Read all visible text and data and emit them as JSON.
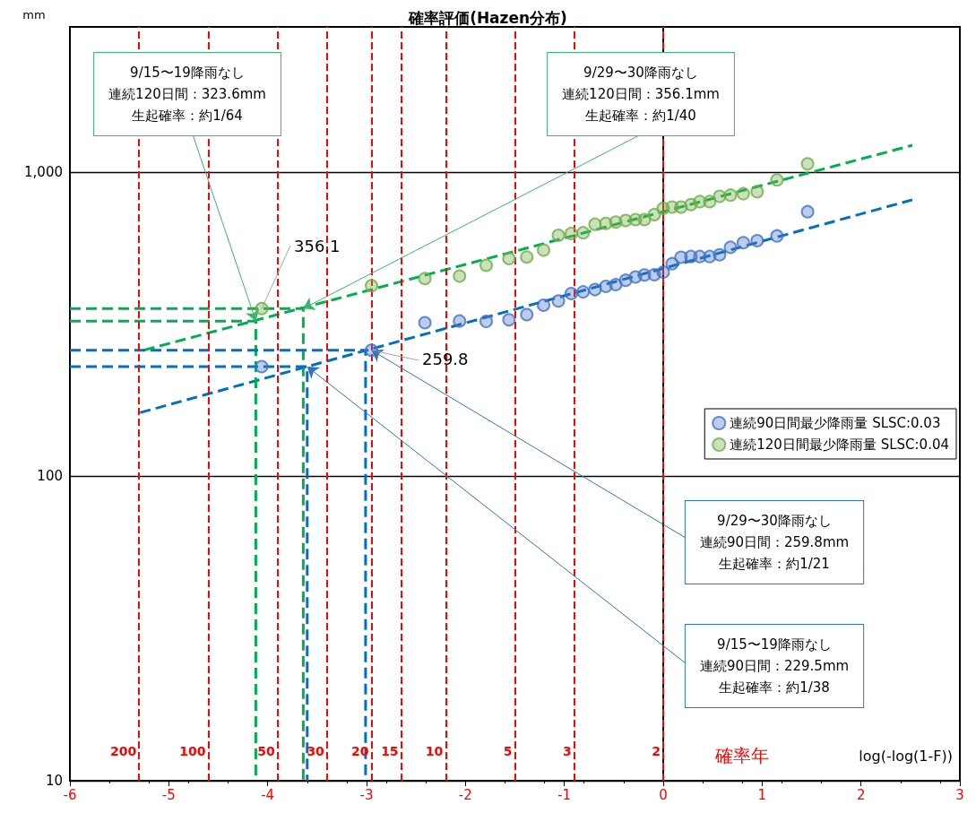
{
  "chart_data": {
    "type": "scatter",
    "title": "確率評価(Hazen分布)",
    "ylabel": "mm",
    "xlabel": "log(-log(1-F))",
    "log": "y",
    "grid": "y",
    "legend": "right",
    "marker": "circle",
    "xlim": [
      -6,
      3
    ],
    "xticks": [
      -6,
      -5,
      -4,
      -3,
      -2,
      -1,
      0,
      1,
      2,
      3
    ],
    "ylim": [
      10,
      3000
    ],
    "yticks": [
      10,
      100,
      {
        "value": 1000,
        "label": "1,000"
      }
    ],
    "series": [
      {
        "name": "連続90日間最少降雨量 SLSC:0.03",
        "color": "#4472c4",
        "x": [
          -4.06,
          -2.95,
          -2.41,
          -2.06,
          -1.79,
          -1.56,
          -1.38,
          -1.21,
          -1.06,
          -0.93,
          -0.81,
          -0.69,
          -0.58,
          -0.48,
          -0.38,
          -0.28,
          -0.19,
          -0.09,
          0.0,
          0.09,
          0.18,
          0.28,
          0.37,
          0.47,
          0.57,
          0.68,
          0.81,
          0.95,
          1.15,
          1.46
        ],
        "values": [
          229.5,
          259.8,
          320,
          324,
          323,
          327,
          340,
          365,
          377,
          399,
          404,
          411,
          421,
          427,
          441,
          452,
          459,
          460,
          469,
          500,
          525,
          528,
          528,
          528,
          535,
          566,
          586,
          595,
          617,
          741
        ]
      },
      {
        "name": "連続120日間最少降雨量 SLSC:0.04",
        "color": "#70ad47",
        "x": [
          -4.06,
          -2.95,
          -2.41,
          -2.06,
          -1.79,
          -1.56,
          -1.38,
          -1.21,
          -1.06,
          -0.93,
          -0.81,
          -0.69,
          -0.58,
          -0.48,
          -0.38,
          -0.28,
          -0.19,
          -0.09,
          0.0,
          0.09,
          0.18,
          0.28,
          0.37,
          0.47,
          0.57,
          0.68,
          0.81,
          0.95,
          1.15,
          1.46
        ],
        "values": [
          356.1,
          423,
          447,
          455,
          494,
          520,
          526,
          554,
          620,
          628,
          632,
          674,
          678,
          685,
          693,
          698,
          698,
          725,
          760,
          767,
          767,
          782,
          800,
          800,
          832,
          840,
          849,
          862,
          942,
          1064
        ]
      },
      {
        "type": "line",
        "marker": "none",
        "color": "#0070c0",
        "line_style": "dashed",
        "x": [
          -5.29,
          2.52
        ],
        "values": [
          162,
          811
        ]
      },
      {
        "type": "line",
        "marker": "none",
        "color": "#00b050",
        "line_style": "dashed",
        "x": [
          -5.25,
          2.52
        ],
        "values": [
          260,
          1225
        ]
      },
      {
        "type": "line",
        "marker": "none",
        "color": "#00b050",
        "line_style": "dashed",
        "x": [
          -6,
          -4.12,
          -4.12
        ],
        "values": [
          323.6,
          323.6,
          10
        ]
      },
      {
        "type": "line",
        "marker": "none",
        "color": "#00b050",
        "line_style": "dashed",
        "x": [
          -6,
          -3.64,
          -3.64
        ],
        "values": [
          356.1,
          356.1,
          10
        ]
      },
      {
        "type": "line",
        "marker": "none",
        "color": "#0070c0",
        "line_style": "dashed",
        "x": [
          -6,
          -3.6,
          -3.6
        ],
        "values": [
          229.5,
          229.5,
          10
        ]
      },
      {
        "type": "line",
        "marker": "none",
        "color": "#0070c0",
        "line_style": "dashed",
        "x": [
          -6,
          -3.01,
          -3.01
        ],
        "values": [
          259.8,
          259.8,
          10
        ]
      }
    ],
    "ref_lines": [
      {
        "axis": "x",
        "value": -5.3,
        "color": "#ff0000",
        "line_style": "dashed"
      },
      {
        "axis": "x",
        "value": -4.6,
        "color": "#ff0000",
        "line_style": "dashed"
      },
      {
        "axis": "x",
        "value": -3.9,
        "color": "#ff0000",
        "line_style": "dashed"
      },
      {
        "axis": "x",
        "value": -3.4,
        "color": "#ff0000",
        "line_style": "dashed"
      },
      {
        "axis": "x",
        "value": -2.95,
        "color": "#ff0000",
        "line_style": "dashed"
      },
      {
        "axis": "x",
        "value": -2.65,
        "color": "#ff0000",
        "line_style": "dashed"
      },
      {
        "axis": "x",
        "value": -2.2,
        "color": "#ff0000",
        "line_style": "dashed"
      },
      {
        "axis": "x",
        "value": -1.5,
        "color": "#ff0000",
        "line_style": "dashed"
      },
      {
        "axis": "x",
        "value": -0.9,
        "color": "#ff0000",
        "line_style": "dashed"
      },
      {
        "axis": "x",
        "value": 0,
        "color": "#ff0000",
        "line_style": "dashed"
      }
    ],
    "annotations": [
      {
        "text": "9/15〜19降雨なし連続120日間：323.6mm生起確率：約1/64",
        "x": -4.12,
        "y": 323.6
      },
      {
        "text": "9/29〜30降雨なし連続120日間：356.1mm生起確率：約1/40",
        "x": -3.64,
        "y": 356.1
      },
      {
        "text": "9/29〜30降雨なし連続90日間：259.8mm生起確率：約1/21",
        "x": -2.95,
        "y": 259.8
      },
      {
        "text": "9/15〜19降雨なし連続90日間：229.5mm生起確率：約1/38",
        "x": -3.6,
        "y": 229.5
      },
      {
        "text": "356.1",
        "x": -4.06,
        "y": 356.1
      },
      {
        "text": "259.8",
        "x": -2.95,
        "y": 259.8
      },
      {
        "text": "200",
        "x": -5.3,
        "y": 12.5
      },
      {
        "text": "100",
        "x": -4.6,
        "y": 12.5
      },
      {
        "text": "50",
        "x": -3.9,
        "y": 12.5
      },
      {
        "text": "30",
        "x": -3.4,
        "y": 12.5
      },
      {
        "text": "20",
        "x": -2.95,
        "y": 12.5
      },
      {
        "text": "15",
        "x": -2.65,
        "y": 12.5
      },
      {
        "text": "10",
        "x": -2.2,
        "y": 12.5
      },
      {
        "text": "5",
        "x": -1.5,
        "y": 12.5
      },
      {
        "text": "3",
        "x": -0.9,
        "y": 12.5
      },
      {
        "text": "2",
        "x": 0,
        "y": 12.5
      },
      "確率年"
    ]
  }
}
